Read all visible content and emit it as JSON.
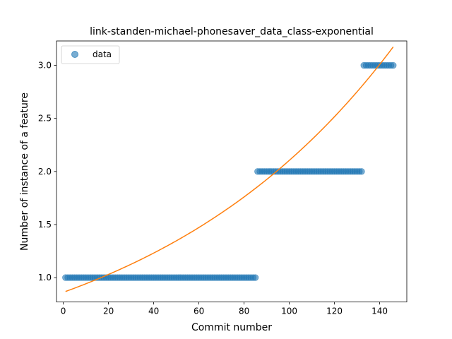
{
  "chart_data": {
    "type": "scatter",
    "title": "link-standen-michael-phonesaver_data_class-exponential",
    "xlabel": "Commit number",
    "ylabel": "Number of instance of a feature",
    "xlim": [
      -3,
      152
    ],
    "ylim": [
      0.77,
      3.23
    ],
    "xticks": [
      0,
      20,
      40,
      60,
      80,
      100,
      120,
      140
    ],
    "yticks": [
      1.0,
      1.5,
      2.0,
      2.5,
      3.0
    ],
    "xtick_labels": [
      "0",
      "20",
      "40",
      "60",
      "80",
      "100",
      "120",
      "140"
    ],
    "ytick_labels": [
      "1.0",
      "1.5",
      "2.0",
      "2.5",
      "3.0"
    ],
    "grid": false,
    "legend": {
      "position": "top-left",
      "entries": [
        "data"
      ]
    },
    "colors": {
      "data": "#1f77b4",
      "fit": "#ff7f0e"
    },
    "series": [
      {
        "name": "data",
        "kind": "scatter",
        "segments": [
          {
            "x_start": 1,
            "x_end": 85,
            "y": 1.0
          },
          {
            "x_start": 86,
            "x_end": 132,
            "y": 2.0
          },
          {
            "x_start": 133,
            "x_end": 146,
            "y": 3.0
          }
        ]
      },
      {
        "kind": "line",
        "a": 0.8612,
        "b": 0.008935,
        "x_range": [
          1,
          146
        ]
      }
    ]
  }
}
